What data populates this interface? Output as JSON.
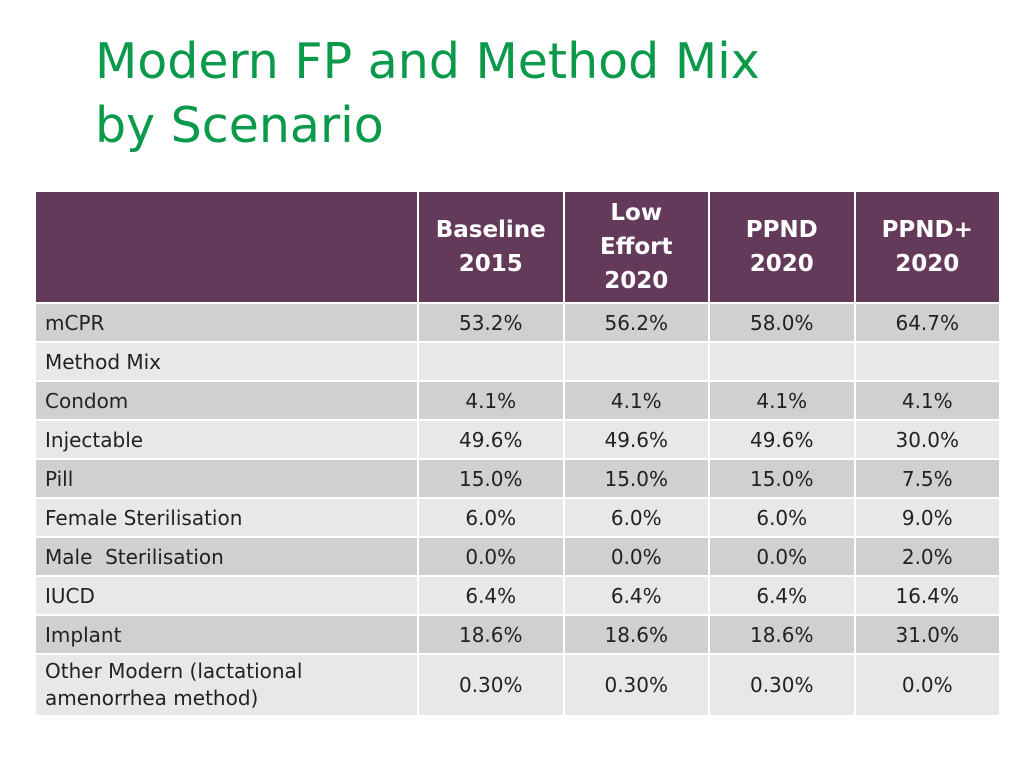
{
  "slide": {
    "title_line1": "Modern FP and Method Mix",
    "title_line2": "by Scenario"
  },
  "colors": {
    "title": "#0b9a4b",
    "header_bg": "#643a5a",
    "row_odd": "#d0cfd1",
    "row_even": "#e8e7e9"
  },
  "table": {
    "headers": [
      {
        "lines": []
      },
      {
        "lines": [
          "Baseline",
          "2015"
        ]
      },
      {
        "lines": [
          "Low",
          "Effort",
          "2020"
        ]
      },
      {
        "lines": [
          "PPND",
          "2020"
        ]
      },
      {
        "lines": [
          "PPND+",
          "2020"
        ]
      }
    ],
    "rows": [
      {
        "label": "mCPR",
        "values": [
          "53.2%",
          "56.2%",
          "58.0%",
          "64.7%"
        ]
      },
      {
        "label": "Method Mix",
        "values": [
          "",
          "",
          "",
          ""
        ]
      },
      {
        "label": "Condom",
        "values": [
          "4.1%",
          "4.1%",
          "4.1%",
          "4.1%"
        ]
      },
      {
        "label": "Injectable",
        "values": [
          "49.6%",
          "49.6%",
          "49.6%",
          "30.0%"
        ]
      },
      {
        "label": "Pill",
        "values": [
          "15.0%",
          "15.0%",
          "15.0%",
          "7.5%"
        ]
      },
      {
        "label": "Female Sterilisation",
        "values": [
          "6.0%",
          "6.0%",
          "6.0%",
          "9.0%"
        ]
      },
      {
        "label": "Male  Sterilisation",
        "values": [
          "0.0%",
          "0.0%",
          "0.0%",
          "2.0%"
        ]
      },
      {
        "label": "IUCD",
        "values": [
          "6.4%",
          "6.4%",
          "6.4%",
          "16.4%"
        ]
      },
      {
        "label": "Implant",
        "values": [
          "18.6%",
          "18.6%",
          "18.6%",
          "31.0%"
        ]
      },
      {
        "label": "Other Modern (lactational amenorrhea method)",
        "values": [
          "0.30%",
          "0.30%",
          "0.30%",
          "0.0%"
        ]
      }
    ]
  }
}
